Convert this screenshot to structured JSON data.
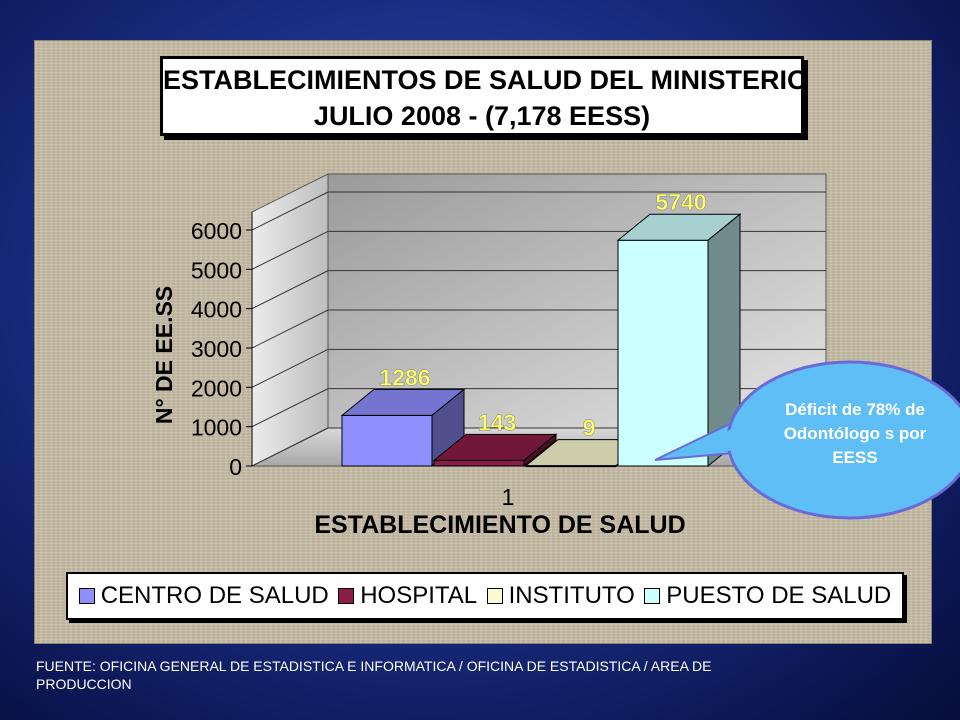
{
  "slide": {
    "footer": "FUENTE: OFICINA GENERAL DE ESTADISTICA E INFORMATICA / OFICINA DE ESTADISTICA / AREA DE PRODUCCION",
    "callout": "Déficit de 78% de Odontólogo s por EESS"
  },
  "chart_data": {
    "type": "bar",
    "title": [
      "ESTABLECIMIENTOS DE SALUD DEL MINISTERIO",
      "JULIO 2008 - (7,178 EESS)"
    ],
    "xlabel": "ESTABLECIMIENTO DE SALUD",
    "ylabel": "N° DE EE.SS",
    "categories": [
      "1"
    ],
    "ylim": [
      0,
      6000
    ],
    "yticks": [
      0,
      1000,
      2000,
      3000,
      4000,
      5000,
      6000
    ],
    "grid": true,
    "legend_position": "bottom",
    "series": [
      {
        "name": "CENTRO DE SALUD",
        "values": [
          1286
        ],
        "color": "#8f8fff"
      },
      {
        "name": "HOSPITAL",
        "values": [
          143
        ],
        "color": "#8b1c45"
      },
      {
        "name": "INSTITUTO",
        "values": [
          9
        ],
        "color": "#fafad0"
      },
      {
        "name": "PUESTO DE SALUD",
        "values": [
          5740
        ],
        "color": "#ccffff"
      }
    ],
    "data_label_color": "#ffff66"
  }
}
